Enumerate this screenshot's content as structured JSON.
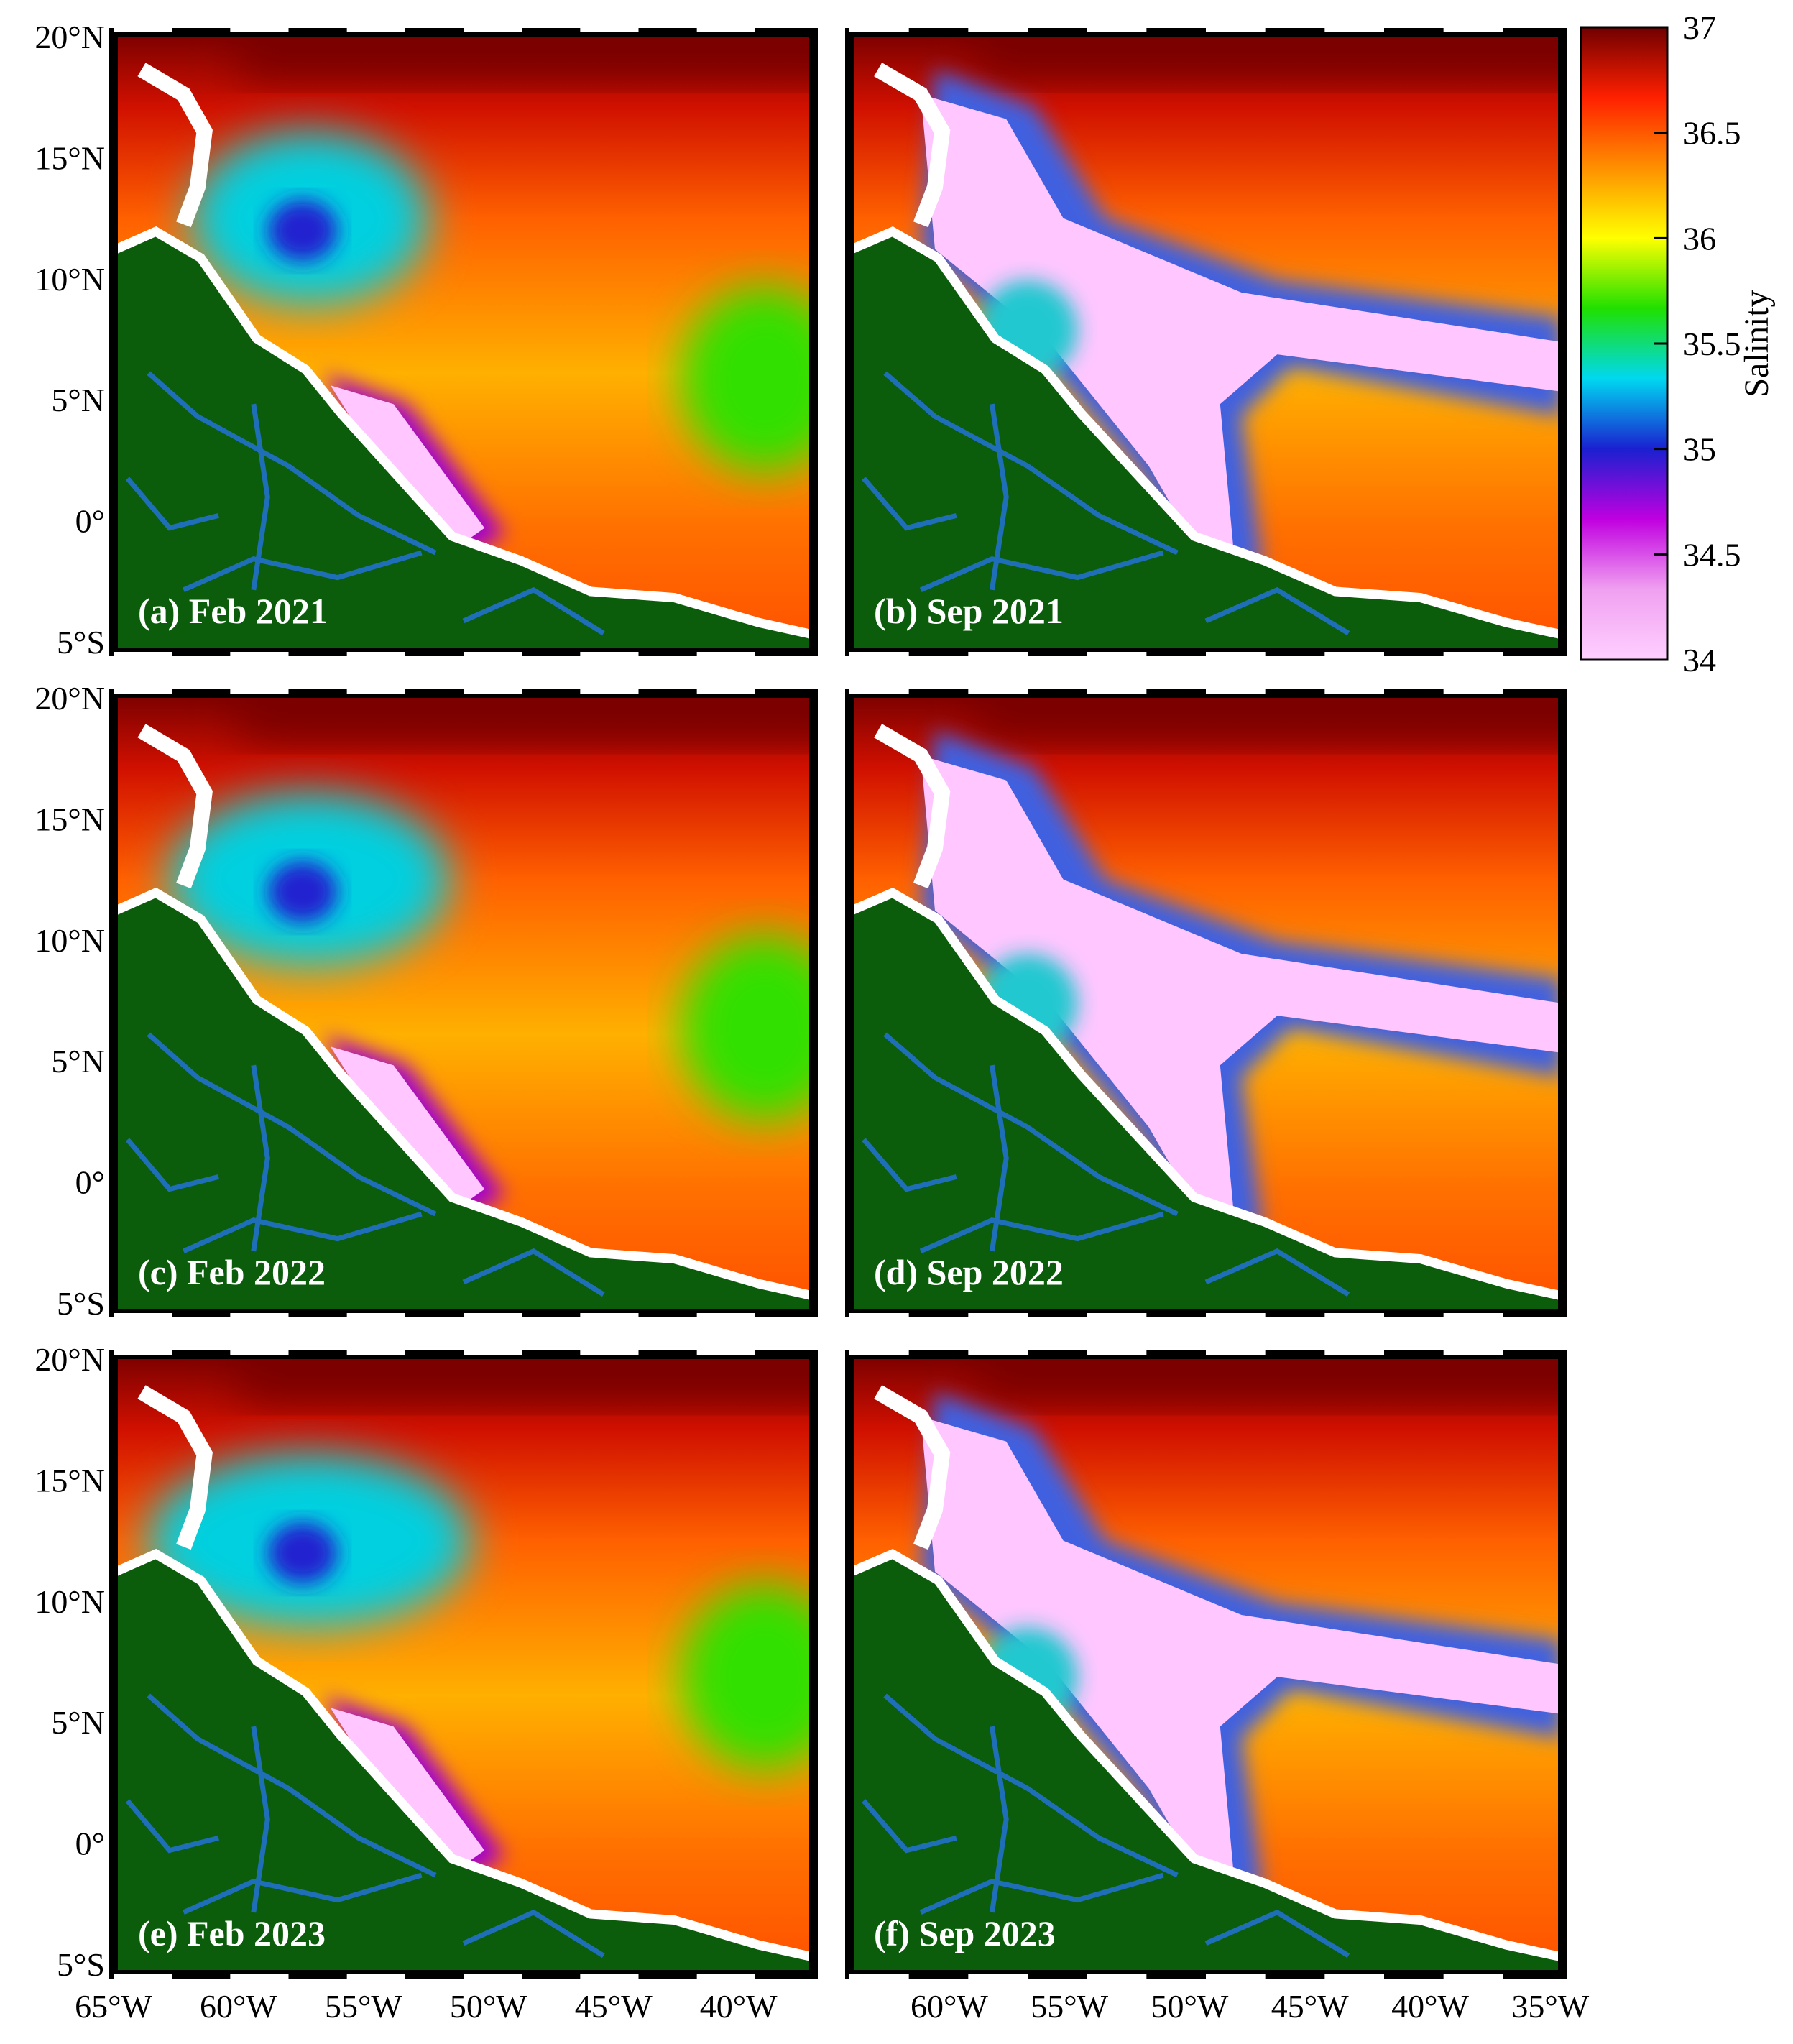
{
  "figure": {
    "panels": [
      {
        "id": "a",
        "label": "(a) Feb 2021",
        "plume": "feb",
        "year": 2021
      },
      {
        "id": "b",
        "label": "(b) Sep 2021",
        "plume": "sep",
        "year": 2021
      },
      {
        "id": "c",
        "label": "(c) Feb 2022",
        "plume": "feb",
        "year": 2022
      },
      {
        "id": "d",
        "label": "(d) Sep 2022",
        "plume": "sep",
        "year": 2022
      },
      {
        "id": "e",
        "label": "(e) Feb 2023",
        "plume": "feb",
        "year": 2023
      },
      {
        "id": "f",
        "label": "(f) Sep 2023",
        "plume": "sep",
        "year": 2023
      }
    ],
    "lat_ticks": [
      "20°N",
      "15°N",
      "10°N",
      "5°N",
      "0°",
      "5°S"
    ],
    "lon_ticks_left": [
      "65°W",
      "60°W",
      "55°W",
      "50°W",
      "45°W",
      "40°W"
    ],
    "lon_ticks_right": [
      "60°W",
      "55°W",
      "50°W",
      "45°W",
      "40°W",
      "35°W"
    ],
    "colorbar": {
      "title": "Salinity",
      "tick_labels": [
        "37",
        "36.5",
        "36",
        "35.5",
        "35",
        "34.5",
        "34"
      ],
      "min": 34,
      "max": 37,
      "stops": [
        "#ffd0ff",
        "#f0a0f0",
        "#c000e0",
        "#1a20d0",
        "#00d8f0",
        "#20e000",
        "#ffff00",
        "#ff9000",
        "#ff2000",
        "#700000"
      ]
    },
    "colors": {
      "land": "#0b5c0b",
      "river": "#1f6fb8",
      "coast_mask": "#ffffff",
      "deep_salt": "#7a0000",
      "plume": "#ffc6ff"
    }
  }
}
